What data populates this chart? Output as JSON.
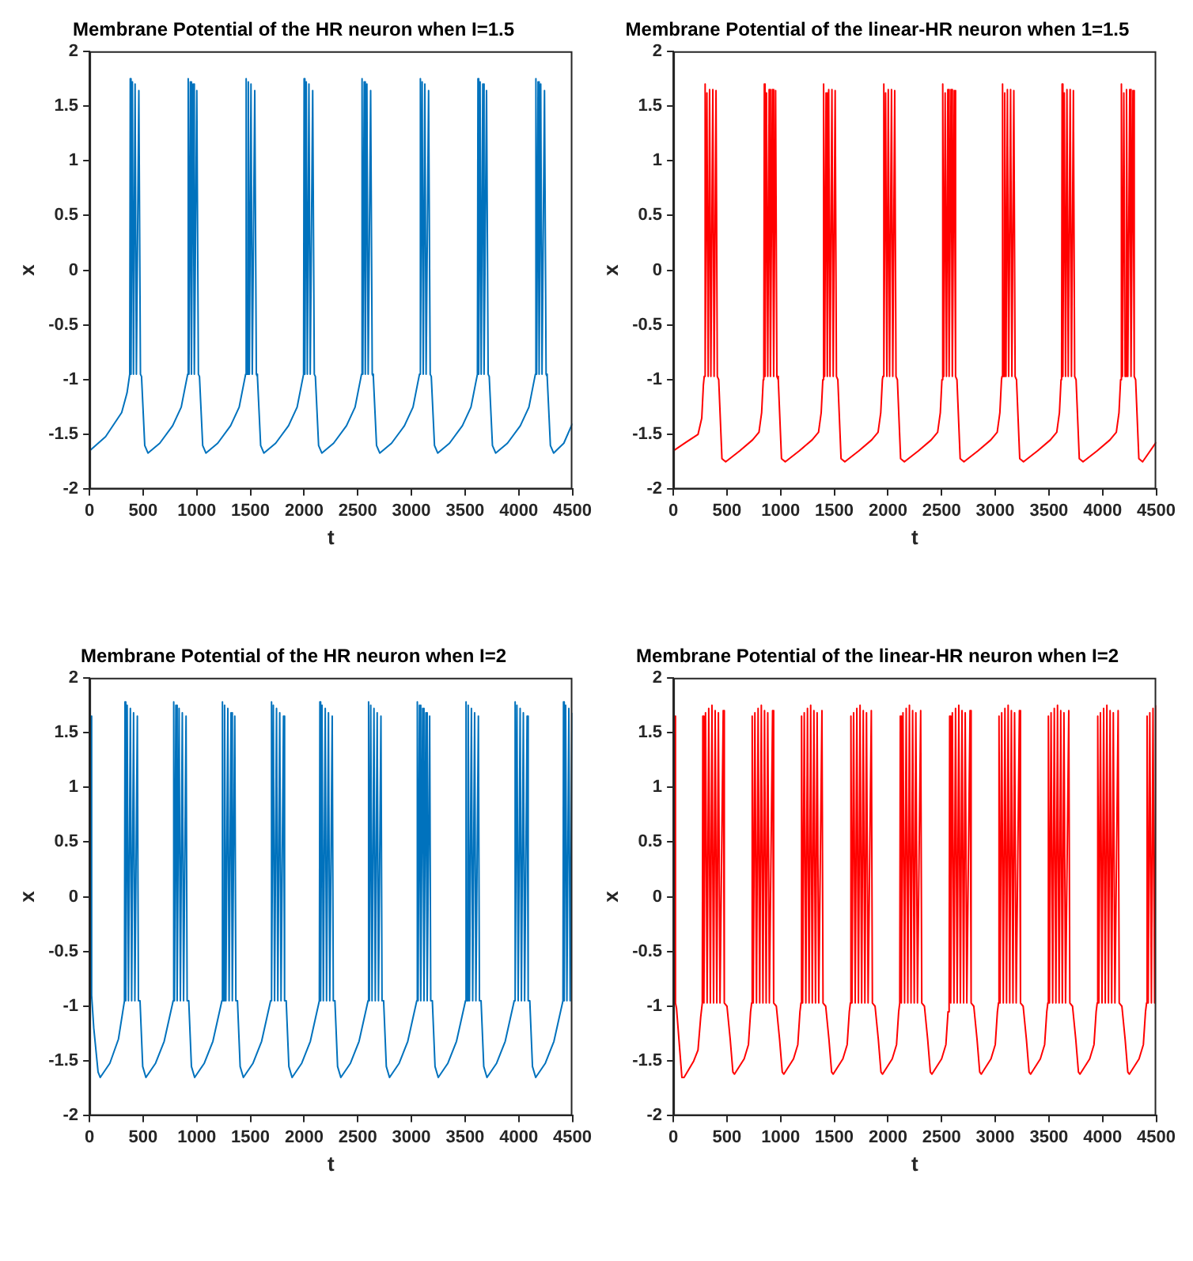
{
  "chart_data": [
    {
      "type": "line",
      "title": "Membrane Potential of the HR neuron when I=1.5",
      "xlabel": "t",
      "ylabel": "x",
      "color": "#0072bd",
      "marker": "none",
      "grid": false,
      "xlim": [
        0,
        4500
      ],
      "xticks": [
        0,
        500,
        1000,
        1500,
        2000,
        2500,
        3000,
        3500,
        4000,
        4500
      ],
      "ylim": [
        -2,
        2
      ],
      "yticks": [
        -2,
        -1.5,
        -1,
        -0.5,
        0,
        0.5,
        1,
        1.5,
        2
      ],
      "x": [
        0,
        150,
        300,
        350,
        375,
        380,
        387,
        400,
        410,
        425,
        437,
        460,
        475,
        485,
        515,
        545,
        655,
        775,
        855,
        895,
        915,
        920,
        927,
        940,
        950,
        965,
        977,
        1000,
        1015,
        1025,
        1055,
        1085,
        1195,
        1315,
        1395,
        1435,
        1455,
        1460,
        1467,
        1480,
        1490,
        1505,
        1517,
        1540,
        1555,
        1565,
        1595,
        1625,
        1735,
        1855,
        1935,
        1975,
        1995,
        2000,
        2007,
        2020,
        2030,
        2045,
        2057,
        2080,
        2095,
        2105,
        2135,
        2165,
        2275,
        2395,
        2475,
        2515,
        2535,
        2540,
        2547,
        2560,
        2570,
        2585,
        2597,
        2620,
        2635,
        2645,
        2675,
        2705,
        2815,
        2935,
        3015,
        3055,
        3075,
        3080,
        3087,
        3100,
        3110,
        3125,
        3137,
        3160,
        3175,
        3185,
        3215,
        3245,
        3355,
        3475,
        3555,
        3595,
        3615,
        3620,
        3627,
        3640,
        3650,
        3665,
        3677,
        3700,
        3715,
        3725,
        3755,
        3785,
        3895,
        4015,
        4095,
        4135,
        4155,
        4160,
        4167,
        4180,
        4190,
        4205,
        4217,
        4240,
        4255,
        4265,
        4295,
        4325,
        4420,
        4500
      ],
      "values": [
        -1.65,
        -1.52,
        -1.3,
        -1.12,
        -0.95,
        1.75,
        -0.95,
        1.72,
        -0.95,
        1.7,
        -0.95,
        1.64,
        -0.95,
        -0.97,
        -1.6,
        -1.67,
        -1.58,
        -1.42,
        -1.25,
        -1.05,
        -0.95,
        1.75,
        -0.95,
        1.72,
        -0.95,
        1.7,
        -0.95,
        1.64,
        -0.95,
        -0.97,
        -1.6,
        -1.67,
        -1.58,
        -1.42,
        -1.25,
        -1.05,
        -0.95,
        1.75,
        -0.95,
        1.72,
        -0.95,
        1.7,
        -0.95,
        1.64,
        -0.95,
        -0.97,
        -1.6,
        -1.67,
        -1.58,
        -1.42,
        -1.25,
        -1.05,
        -0.95,
        1.75,
        -0.95,
        1.72,
        -0.95,
        1.7,
        -0.95,
        1.64,
        -0.95,
        -0.97,
        -1.6,
        -1.67,
        -1.58,
        -1.42,
        -1.25,
        -1.05,
        -0.95,
        1.75,
        -0.95,
        1.72,
        -0.95,
        1.7,
        -0.95,
        1.64,
        -0.95,
        -0.97,
        -1.6,
        -1.67,
        -1.58,
        -1.42,
        -1.25,
        -1.05,
        -0.95,
        1.75,
        -0.95,
        1.72,
        -0.95,
        1.7,
        -0.95,
        1.64,
        -0.95,
        -0.97,
        -1.6,
        -1.67,
        -1.58,
        -1.42,
        -1.25,
        -1.05,
        -0.95,
        1.75,
        -0.95,
        1.72,
        -0.95,
        1.7,
        -0.95,
        1.64,
        -0.95,
        -0.97,
        -1.6,
        -1.67,
        -1.58,
        -1.42,
        -1.25,
        -1.05,
        -0.95,
        1.75,
        -0.95,
        1.72,
        -0.95,
        1.7,
        -0.95,
        1.64,
        -0.95,
        -0.97,
        -1.6,
        -1.67,
        -1.58,
        -1.4
      ]
    },
    {
      "type": "line",
      "title": "Membrane Potential of the linear-HR neuron when 1=1.5",
      "xlabel": "t",
      "ylabel": "x",
      "color": "#ff0000",
      "marker": "none",
      "grid": false,
      "xlim": [
        0,
        4500
      ],
      "xticks": [
        0,
        500,
        1000,
        1500,
        2000,
        2500,
        3000,
        3500,
        4000,
        4500
      ],
      "ylim": [
        -2,
        2
      ],
      "yticks": [
        -2,
        -1.5,
        -1,
        -0.5,
        0,
        0.5,
        1,
        1.5,
        2
      ],
      "x": [
        0,
        120,
        230,
        265,
        280,
        288,
        293,
        300,
        313,
        325,
        338,
        350,
        368,
        380,
        398,
        410,
        423,
        453,
        488,
        618,
        738,
        798,
        823,
        838,
        843,
        848,
        855,
        868,
        880,
        893,
        905,
        923,
        935,
        953,
        965,
        978,
        1008,
        1043,
        1173,
        1293,
        1353,
        1378,
        1393,
        1398,
        1403,
        1410,
        1423,
        1435,
        1448,
        1460,
        1478,
        1490,
        1508,
        1520,
        1533,
        1563,
        1598,
        1728,
        1848,
        1908,
        1933,
        1948,
        1953,
        1958,
        1965,
        1978,
        1990,
        2003,
        2015,
        2033,
        2045,
        2063,
        2075,
        2088,
        2118,
        2153,
        2283,
        2403,
        2463,
        2488,
        2503,
        2508,
        2513,
        2520,
        2533,
        2545,
        2558,
        2570,
        2588,
        2600,
        2618,
        2630,
        2643,
        2673,
        2708,
        2838,
        2958,
        3018,
        3043,
        3058,
        3063,
        3068,
        3075,
        3088,
        3100,
        3113,
        3125,
        3143,
        3155,
        3173,
        3185,
        3198,
        3228,
        3263,
        3393,
        3513,
        3573,
        3598,
        3613,
        3618,
        3623,
        3630,
        3643,
        3655,
        3668,
        3680,
        3698,
        3710,
        3728,
        3740,
        3753,
        3783,
        3818,
        3948,
        4068,
        4128,
        4153,
        4168,
        4173,
        4178,
        4185,
        4198,
        4210,
        4223,
        4235,
        4253,
        4265,
        4283,
        4295,
        4308,
        4338,
        4373,
        4500
      ],
      "values": [
        -1.65,
        -1.57,
        -1.5,
        -1.35,
        -1.05,
        -0.97,
        1.7,
        -0.97,
        1.62,
        -0.97,
        1.65,
        -0.97,
        1.65,
        -0.97,
        1.64,
        -0.97,
        -1.0,
        -1.72,
        -1.75,
        -1.65,
        -1.55,
        -1.48,
        -1.3,
        -1.0,
        -0.97,
        1.7,
        -0.97,
        1.62,
        -0.97,
        1.65,
        -0.97,
        1.65,
        -0.97,
        1.64,
        -0.97,
        -1.0,
        -1.72,
        -1.75,
        -1.65,
        -1.55,
        -1.48,
        -1.3,
        -1.0,
        -0.97,
        1.7,
        -0.97,
        1.62,
        -0.97,
        1.65,
        -0.97,
        1.65,
        -0.97,
        1.64,
        -0.97,
        -1.0,
        -1.72,
        -1.75,
        -1.65,
        -1.55,
        -1.48,
        -1.3,
        -1.0,
        -0.97,
        1.7,
        -0.97,
        1.62,
        -0.97,
        1.65,
        -0.97,
        1.65,
        -0.97,
        1.64,
        -0.97,
        -1.0,
        -1.72,
        -1.75,
        -1.65,
        -1.55,
        -1.48,
        -1.3,
        -1.0,
        -0.97,
        1.7,
        -0.97,
        1.62,
        -0.97,
        1.65,
        -0.97,
        1.65,
        -0.97,
        1.64,
        -0.97,
        -1.0,
        -1.72,
        -1.75,
        -1.65,
        -1.55,
        -1.48,
        -1.3,
        -1.0,
        -0.97,
        1.7,
        -0.97,
        1.62,
        -0.97,
        1.65,
        -0.97,
        1.65,
        -0.97,
        1.64,
        -0.97,
        -1.0,
        -1.72,
        -1.75,
        -1.65,
        -1.55,
        -1.48,
        -1.3,
        -1.0,
        -0.97,
        1.7,
        -0.97,
        1.62,
        -0.97,
        1.65,
        -0.97,
        1.65,
        -0.97,
        1.64,
        -0.97,
        -1.0,
        -1.72,
        -1.75,
        -1.65,
        -1.55,
        -1.48,
        -1.3,
        -1.0,
        -0.97,
        1.7,
        -0.97,
        1.62,
        -0.97,
        1.65,
        -0.97,
        1.65,
        -0.97,
        1.64,
        -0.97,
        -1.0,
        -1.72,
        -1.75,
        -1.57
      ]
    },
    {
      "type": "line",
      "title": "Membrane Potential of the HR neuron when I=2",
      "xlabel": "t",
      "ylabel": "x",
      "color": "#0072bd",
      "marker": "none",
      "grid": false,
      "xlim": [
        0,
        4500
      ],
      "xticks": [
        0,
        500,
        1000,
        1500,
        2000,
        2500,
        3000,
        3500,
        4000,
        4500
      ],
      "ylim": [
        -2,
        2
      ],
      "yticks": [
        -2,
        -1.5,
        -1,
        -0.5,
        0,
        0.5,
        1,
        1.5,
        2
      ],
      "x": [
        12,
        20,
        40,
        80,
        100,
        190,
        270,
        310,
        326,
        331,
        338,
        351,
        363,
        381,
        393,
        411,
        423,
        446,
        456,
        471,
        496,
        526,
        616,
        696,
        746,
        780,
        785,
        792,
        805,
        817,
        835,
        847,
        865,
        877,
        900,
        910,
        925,
        950,
        980,
        1070,
        1150,
        1200,
        1234,
        1239,
        1246,
        1259,
        1271,
        1289,
        1301,
        1319,
        1331,
        1354,
        1364,
        1379,
        1404,
        1434,
        1524,
        1604,
        1654,
        1688,
        1693,
        1700,
        1713,
        1725,
        1743,
        1755,
        1773,
        1785,
        1808,
        1818,
        1833,
        1858,
        1888,
        1978,
        2058,
        2108,
        2142,
        2147,
        2154,
        2167,
        2179,
        2197,
        2209,
        2227,
        2239,
        2262,
        2272,
        2287,
        2312,
        2342,
        2432,
        2512,
        2562,
        2596,
        2601,
        2608,
        2621,
        2633,
        2651,
        2663,
        2681,
        2693,
        2716,
        2726,
        2741,
        2766,
        2796,
        2886,
        2966,
        3016,
        3050,
        3055,
        3062,
        3075,
        3087,
        3105,
        3117,
        3135,
        3147,
        3170,
        3180,
        3195,
        3220,
        3250,
        3340,
        3420,
        3470,
        3504,
        3509,
        3516,
        3529,
        3541,
        3559,
        3571,
        3589,
        3601,
        3624,
        3634,
        3649,
        3674,
        3704,
        3794,
        3874,
        3924,
        3958,
        3963,
        3970,
        3983,
        3995,
        4013,
        4025,
        4043,
        4055,
        4078,
        4088,
        4103,
        4128,
        4158,
        4248,
        4328,
        4378,
        4412,
        4417,
        4424,
        4437,
        4449,
        4467,
        4479,
        4497
      ],
      "values": [
        1.65,
        -0.9,
        -1.2,
        -1.6,
        -1.65,
        -1.52,
        -1.3,
        -1.05,
        -0.95,
        1.78,
        -0.95,
        1.75,
        -0.95,
        1.72,
        -0.95,
        1.68,
        -0.95,
        1.65,
        -0.95,
        -0.95,
        -1.55,
        -1.65,
        -1.52,
        -1.32,
        -1.1,
        -0.95,
        1.78,
        -0.95,
        1.75,
        -0.95,
        1.72,
        -0.95,
        1.68,
        -0.95,
        1.65,
        -0.95,
        -0.95,
        -1.55,
        -1.65,
        -1.52,
        -1.32,
        -1.1,
        -0.95,
        1.78,
        -0.95,
        1.75,
        -0.95,
        1.72,
        -0.95,
        1.68,
        -0.95,
        1.65,
        -0.95,
        -0.95,
        -1.55,
        -1.65,
        -1.52,
        -1.32,
        -1.1,
        -0.95,
        1.78,
        -0.95,
        1.75,
        -0.95,
        1.72,
        -0.95,
        1.68,
        -0.95,
        1.65,
        -0.95,
        -0.95,
        -1.55,
        -1.65,
        -1.52,
        -1.32,
        -1.1,
        -0.95,
        1.78,
        -0.95,
        1.75,
        -0.95,
        1.72,
        -0.95,
        1.68,
        -0.95,
        1.65,
        -0.95,
        -0.95,
        -1.55,
        -1.65,
        -1.52,
        -1.32,
        -1.1,
        -0.95,
        1.78,
        -0.95,
        1.75,
        -0.95,
        1.72,
        -0.95,
        1.68,
        -0.95,
        1.65,
        -0.95,
        -0.95,
        -1.55,
        -1.65,
        -1.52,
        -1.32,
        -1.1,
        -0.95,
        1.78,
        -0.95,
        1.75,
        -0.95,
        1.72,
        -0.95,
        1.68,
        -0.95,
        1.65,
        -0.95,
        -0.95,
        -1.55,
        -1.65,
        -1.52,
        -1.32,
        -1.1,
        -0.95,
        1.78,
        -0.95,
        1.75,
        -0.95,
        1.72,
        -0.95,
        1.68,
        -0.95,
        1.65,
        -0.95,
        -0.95,
        -1.55,
        -1.65,
        -1.52,
        -1.32,
        -1.1,
        -0.95,
        1.78,
        -0.95,
        1.75,
        -0.95,
        1.72,
        -0.95,
        1.68,
        -0.95,
        1.65,
        -0.95,
        -0.95,
        -1.55,
        -1.65,
        -1.52,
        -1.32,
        -1.1,
        -0.95,
        1.78,
        -0.95,
        1.75,
        -0.95,
        1.72,
        -0.95,
        1.68
      ]
    },
    {
      "type": "line",
      "title": "Membrane Potential of the linear-HR neuron when I=2",
      "xlabel": "t",
      "ylabel": "x",
      "color": "#ff0000",
      "marker": "none",
      "grid": false,
      "xlim": [
        0,
        4500
      ],
      "xticks": [
        0,
        500,
        1000,
        1500,
        2000,
        2500,
        3000,
        3500,
        4000,
        4500
      ],
      "ylim": [
        -2,
        2
      ],
      "yticks": [
        -2,
        -1.5,
        -1,
        -0.5,
        0,
        0.5,
        1,
        1.5,
        2
      ],
      "x": [
        12,
        20,
        30,
        60,
        80,
        100,
        190,
        230,
        255,
        270,
        275,
        285,
        300,
        315,
        330,
        345,
        360,
        375,
        390,
        405,
        420,
        435,
        465,
        475,
        500,
        530,
        555,
        570,
        660,
        700,
        720,
        730,
        735,
        745,
        760,
        775,
        790,
        805,
        820,
        835,
        850,
        865,
        880,
        895,
        925,
        935,
        960,
        990,
        1015,
        1030,
        1120,
        1160,
        1180,
        1190,
        1195,
        1205,
        1220,
        1235,
        1250,
        1265,
        1280,
        1295,
        1310,
        1325,
        1340,
        1355,
        1385,
        1395,
        1420,
        1450,
        1475,
        1490,
        1580,
        1620,
        1640,
        1650,
        1655,
        1665,
        1680,
        1695,
        1710,
        1725,
        1740,
        1755,
        1770,
        1785,
        1800,
        1815,
        1845,
        1855,
        1880,
        1910,
        1935,
        1950,
        2040,
        2080,
        2100,
        2110,
        2115,
        2125,
        2140,
        2155,
        2170,
        2185,
        2200,
        2215,
        2230,
        2245,
        2260,
        2275,
        2305,
        2315,
        2340,
        2370,
        2395,
        2410,
        2500,
        2540,
        2560,
        2570,
        2575,
        2585,
        2600,
        2615,
        2630,
        2645,
        2660,
        2675,
        2690,
        2705,
        2720,
        2735,
        2765,
        2775,
        2800,
        2830,
        2855,
        2870,
        2960,
        3000,
        3020,
        3030,
        3035,
        3045,
        3060,
        3075,
        3090,
        3105,
        3120,
        3135,
        3150,
        3165,
        3180,
        3195,
        3225,
        3235,
        3260,
        3290,
        3315,
        3330,
        3420,
        3460,
        3480,
        3490,
        3495,
        3505,
        3520,
        3535,
        3550,
        3565,
        3580,
        3595,
        3610,
        3625,
        3640,
        3655,
        3685,
        3695,
        3720,
        3750,
        3775,
        3790,
        3880,
        3920,
        3940,
        3950,
        3955,
        3965,
        3980,
        3995,
        4010,
        4025,
        4040,
        4055,
        4070,
        4085,
        4100,
        4115,
        4145,
        4155,
        4180,
        4210,
        4235,
        4250,
        4340,
        4380,
        4400,
        4410,
        4415,
        4425,
        4440,
        4455,
        4470,
        4485,
        4500
      ],
      "values": [
        1.65,
        -0.97,
        -1.02,
        -1.4,
        -1.65,
        -1.65,
        -1.5,
        -1.4,
        -1.1,
        -0.97,
        1.65,
        -0.97,
        1.68,
        -0.97,
        1.72,
        -0.97,
        1.75,
        -0.97,
        1.7,
        -0.97,
        1.68,
        -0.97,
        1.7,
        -0.97,
        -1.0,
        -1.3,
        -1.6,
        -1.62,
        -1.48,
        -1.35,
        -1.05,
        -0.97,
        1.65,
        -0.97,
        1.68,
        -0.97,
        1.72,
        -0.97,
        1.75,
        -0.97,
        1.7,
        -0.97,
        1.68,
        -0.97,
        1.7,
        -0.97,
        -1.0,
        -1.3,
        -1.6,
        -1.62,
        -1.48,
        -1.35,
        -1.05,
        -0.97,
        1.65,
        -0.97,
        1.68,
        -0.97,
        1.72,
        -0.97,
        1.75,
        -0.97,
        1.7,
        -0.97,
        1.68,
        -0.97,
        1.7,
        -0.97,
        -1.0,
        -1.3,
        -1.6,
        -1.62,
        -1.48,
        -1.35,
        -1.05,
        -0.97,
        1.65,
        -0.97,
        1.68,
        -0.97,
        1.72,
        -0.97,
        1.75,
        -0.97,
        1.7,
        -0.97,
        1.68,
        -0.97,
        1.7,
        -0.97,
        -1.0,
        -1.3,
        -1.6,
        -1.62,
        -1.48,
        -1.35,
        -1.05,
        -0.97,
        1.65,
        -0.97,
        1.68,
        -0.97,
        1.72,
        -0.97,
        1.75,
        -0.97,
        1.7,
        -0.97,
        1.68,
        -0.97,
        1.7,
        -0.97,
        -1.0,
        -1.3,
        -1.6,
        -1.62,
        -1.48,
        -1.35,
        -1.05,
        -0.97,
        1.65,
        -0.97,
        1.68,
        -0.97,
        1.72,
        -0.97,
        1.75,
        -0.97,
        1.7,
        -0.97,
        1.68,
        -0.97,
        1.7,
        -0.97,
        -1.0,
        -1.3,
        -1.6,
        -1.62,
        -1.48,
        -1.35,
        -1.05,
        -0.97,
        1.65,
        -0.97,
        1.68,
        -0.97,
        1.72,
        -0.97,
        1.75,
        -0.97,
        1.7,
        -0.97,
        1.68,
        -0.97,
        1.7,
        -0.97,
        -1.0,
        -1.3,
        -1.6,
        -1.62,
        -1.48,
        -1.35,
        -1.05,
        -0.97,
        1.65,
        -0.97,
        1.68,
        -0.97,
        1.72,
        -0.97,
        1.75,
        -0.97,
        1.7,
        -0.97,
        1.68,
        -0.97,
        1.7,
        -0.97,
        -1.0,
        -1.3,
        -1.6,
        -1.62,
        -1.48,
        -1.35,
        -1.05,
        -0.97,
        1.65,
        -0.97,
        1.68,
        -0.97,
        1.72,
        -0.97,
        1.75,
        -0.97,
        1.7,
        -0.97,
        1.68,
        -0.97,
        1.7,
        -0.97,
        -1.0,
        -1.3,
        -1.6,
        -1.62,
        -1.48,
        -1.35,
        -1.05,
        -0.97,
        1.65,
        -0.97,
        1.68,
        -0.97,
        1.72,
        -0.97,
        1.75
      ]
    }
  ]
}
